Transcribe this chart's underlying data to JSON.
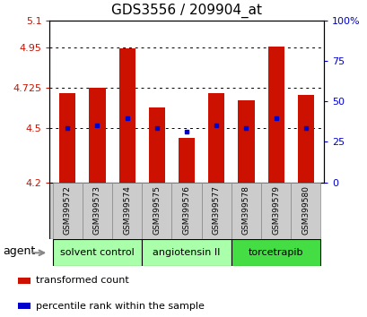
{
  "title": "GDS3556 / 209904_at",
  "samples": [
    "GSM399572",
    "GSM399573",
    "GSM399574",
    "GSM399575",
    "GSM399576",
    "GSM399577",
    "GSM399578",
    "GSM399579",
    "GSM399580"
  ],
  "bar_heights": [
    4.695,
    4.725,
    4.945,
    4.615,
    4.445,
    4.695,
    4.655,
    4.955,
    4.685
  ],
  "bar_base": 4.2,
  "percentile_values": [
    4.503,
    4.518,
    4.558,
    4.503,
    4.48,
    4.515,
    4.503,
    4.558,
    4.503
  ],
  "bar_color": "#cc1100",
  "percentile_color": "#0000cc",
  "ylim_left": [
    4.2,
    5.1
  ],
  "ylim_right": [
    0,
    100
  ],
  "yticks_left": [
    4.2,
    4.5,
    4.725,
    4.95,
    5.1
  ],
  "yticks_right": [
    0,
    25,
    50,
    75,
    100
  ],
  "ytick_labels_left": [
    "4.2",
    "4.5",
    "4.725",
    "4.95",
    "5.1"
  ],
  "ytick_labels_right": [
    "0",
    "25",
    "50",
    "75",
    "100%"
  ],
  "hlines": [
    4.5,
    4.725,
    4.95
  ],
  "groups": [
    {
      "label": "solvent control",
      "start": 0,
      "end": 3,
      "color": "#aaffaa"
    },
    {
      "label": "angiotensin II",
      "start": 3,
      "end": 6,
      "color": "#aaffaa"
    },
    {
      "label": "torcetrapib",
      "start": 6,
      "end": 9,
      "color": "#44dd44"
    }
  ],
  "agent_label": "agent",
  "legend_items": [
    {
      "color": "#cc1100",
      "label": "transformed count"
    },
    {
      "color": "#0000cc",
      "label": "percentile rank within the sample"
    }
  ],
  "bar_width": 0.55,
  "background_color": "#ffffff",
  "plot_bg_color": "#ffffff",
  "left_tick_color": "#cc1100",
  "right_tick_color": "#0000cc",
  "title_fontsize": 11,
  "tick_fontsize": 8,
  "sample_fontsize": 6.5,
  "group_fontsize": 8,
  "legend_fontsize": 8,
  "agent_fontsize": 9
}
